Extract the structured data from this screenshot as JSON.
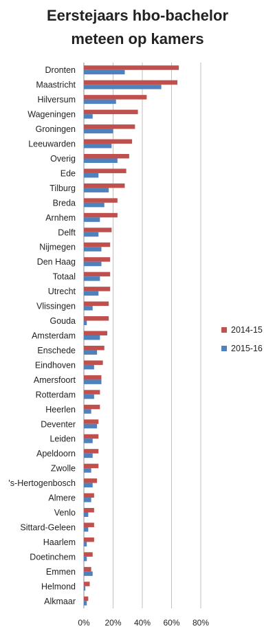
{
  "chart_data": {
    "type": "bar",
    "orientation": "horizontal",
    "title_lines": [
      "Eerstejaars hbo-bachelor",
      "meteen op kamers"
    ],
    "categories": [
      "Dronten",
      "Maastricht",
      "Hilversum",
      "Wageningen",
      "Groningen",
      "Leeuwarden",
      "Overig",
      "Ede",
      "Tilburg",
      "Breda",
      "Arnhem",
      "Delft",
      "Nijmegen",
      "Den Haag",
      "Totaal",
      "Utrecht",
      "Vlissingen",
      "Gouda",
      "Amsterdam",
      "Enschede",
      "Eindhoven",
      "Amersfoort",
      "Rotterdam",
      "Heerlen",
      "Deventer",
      "Leiden",
      "Apeldoorn",
      "Zwolle",
      "'s-Hertogenbosch",
      "Almere",
      "Venlo",
      "Sittard-Geleen",
      "Haarlem",
      "Doetinchem",
      "Emmen",
      "Helmond",
      "Alkmaar"
    ],
    "series": [
      {
        "name": "2014-15",
        "color": "#c0504d",
        "values": [
          65,
          64,
          43,
          37,
          35,
          33,
          31,
          29,
          28,
          23,
          23,
          19,
          18,
          18,
          18,
          18,
          17,
          17,
          16,
          14,
          13,
          12,
          11,
          11,
          10,
          10,
          10,
          10,
          9,
          7,
          7,
          7,
          7,
          6,
          5,
          4,
          3
        ]
      },
      {
        "name": "2015-16",
        "color": "#4f81bd",
        "values": [
          28,
          53,
          22,
          6,
          20,
          19,
          23,
          10,
          17,
          14,
          11,
          10,
          12,
          12,
          11,
          10,
          6,
          2,
          11,
          9,
          7,
          12,
          7,
          5,
          9,
          6,
          6,
          5,
          6,
          5,
          3,
          3,
          2,
          2,
          6,
          1,
          2
        ]
      }
    ],
    "xlim": [
      0,
      80
    ],
    "x_ticks": [
      "0%",
      "20%",
      "40%",
      "60%",
      "80%"
    ],
    "legend_position": "right",
    "grid": "vertical"
  }
}
